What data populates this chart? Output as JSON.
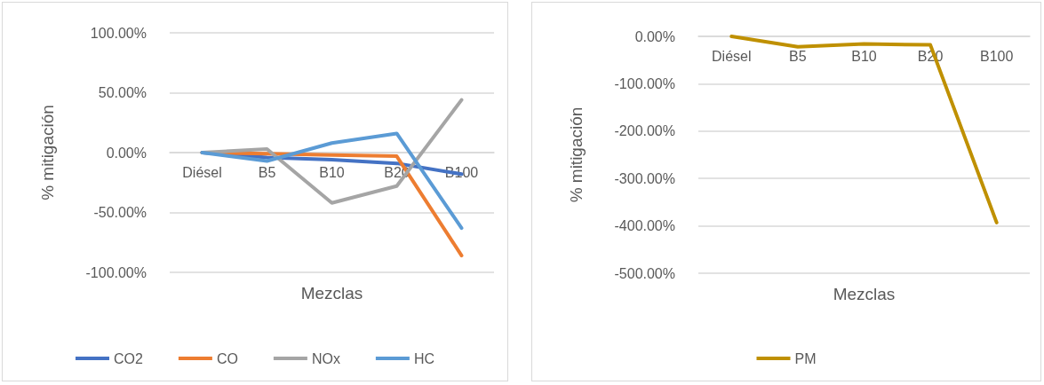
{
  "chart_data": [
    {
      "type": "line",
      "xlabel": "Mezclas",
      "ylabel": "% mitigación",
      "categories": [
        "Diésel",
        "B5",
        "B10",
        "B20",
        "B100"
      ],
      "series": [
        {
          "name": "CO2",
          "color": "#4472c4",
          "values": [
            0,
            -4,
            -6,
            -9,
            -18
          ]
        },
        {
          "name": "CO",
          "color": "#ed7d31",
          "values": [
            0,
            -1,
            -2,
            -3,
            -86
          ]
        },
        {
          "name": "NOx",
          "color": "#a5a5a5",
          "values": [
            0,
            3,
            -42,
            -28,
            44
          ]
        },
        {
          "name": "HC",
          "color": "#5b9bd5",
          "values": [
            0,
            -7,
            8,
            16,
            -63
          ]
        }
      ],
      "ylim": [
        -100,
        100
      ],
      "yticks": [
        {
          "value": -100,
          "label": "-100.00%"
        },
        {
          "value": -50,
          "label": "-50.00%"
        },
        {
          "value": 0,
          "label": "0.00%"
        },
        {
          "value": 50,
          "label": "50.00%"
        },
        {
          "value": 100,
          "label": "100.00%"
        }
      ],
      "grid": "y",
      "legend": "bottom",
      "marker": "none",
      "line_style": "solid"
    },
    {
      "type": "line",
      "xlabel": "Mezclas",
      "ylabel": "% mitigación",
      "categories": [
        "Diésel",
        "B5",
        "B10",
        "B20",
        "B100"
      ],
      "series": [
        {
          "name": "PM",
          "color": "#bf9000",
          "values": [
            0,
            -22,
            -16,
            -18,
            -393
          ]
        }
      ],
      "ylim": [
        -500,
        0
      ],
      "yticks": [
        {
          "value": -500,
          "label": "-500.00%"
        },
        {
          "value": -400,
          "label": "-400.00%"
        },
        {
          "value": -300,
          "label": "-300.00%"
        },
        {
          "value": -200,
          "label": "-200.00%"
        },
        {
          "value": -100,
          "label": "-100.00%"
        },
        {
          "value": 0,
          "label": "0.00%"
        }
      ],
      "grid": "y",
      "legend": "bottom",
      "marker": "none",
      "line_style": "solid"
    }
  ]
}
